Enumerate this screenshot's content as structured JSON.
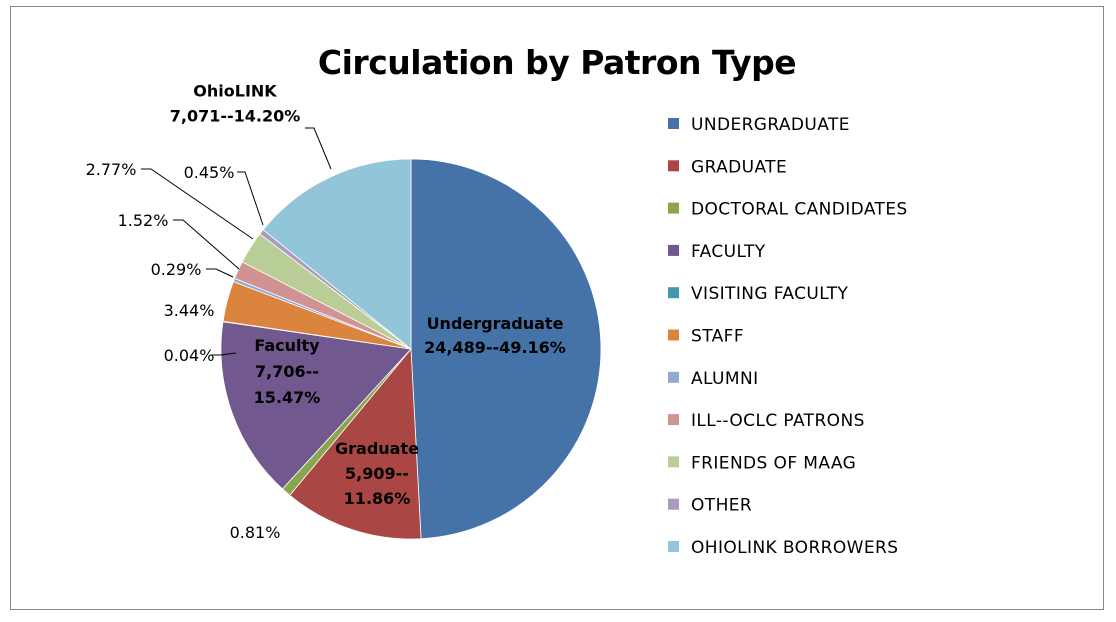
{
  "chart_data": {
    "type": "pie",
    "title": "Circulation by Patron Type",
    "legend_position": "right",
    "series": [
      {
        "name": "UNDERGRADUATE",
        "value": 24489,
        "percent": 49.16,
        "color": "#4572A7",
        "label_lines": [
          "Undergraduate",
          "24,489--49.16%"
        ]
      },
      {
        "name": "GRADUATE",
        "value": 5909,
        "percent": 11.86,
        "color": "#AA4643",
        "label_lines": [
          "Graduate",
          "5,909--",
          "11.86%"
        ]
      },
      {
        "name": "DOCTORAL CANDIDATES",
        "percent": 0.81,
        "color": "#89A54E",
        "label_lines": [
          "0.81%"
        ]
      },
      {
        "name": "FACULTY",
        "value": 7706,
        "percent": 15.47,
        "color": "#71588F",
        "label_lines": [
          "Faculty",
          "7,706--",
          "15.47%"
        ]
      },
      {
        "name": "VISITING FACULTY",
        "percent": 0.04,
        "color": "#4198AF",
        "label_lines": [
          "0.04%"
        ]
      },
      {
        "name": "STAFF",
        "percent": 3.44,
        "color": "#DB843D",
        "label_lines": [
          "3.44%"
        ]
      },
      {
        "name": "ALUMNI",
        "percent": 0.29,
        "color": "#93A9CF",
        "label_lines": [
          "0.29%"
        ]
      },
      {
        "name": "ILL--OCLC PATRONS",
        "percent": 1.52,
        "color": "#D19392",
        "label_lines": [
          "1.52%"
        ]
      },
      {
        "name": "FRIENDS OF MAAG",
        "percent": 2.77,
        "color": "#B9CD96",
        "label_lines": [
          "2.77%"
        ]
      },
      {
        "name": "OTHER",
        "percent": 0.45,
        "color": "#A99BBD",
        "label_lines": [
          "0.45%"
        ]
      },
      {
        "name": "OHIOLINK BORROWERS",
        "value": 7071,
        "percent": 14.2,
        "color": "#92C5D7",
        "label_lines": [
          "OhioLINK",
          "7,071--14.20%"
        ]
      }
    ]
  }
}
